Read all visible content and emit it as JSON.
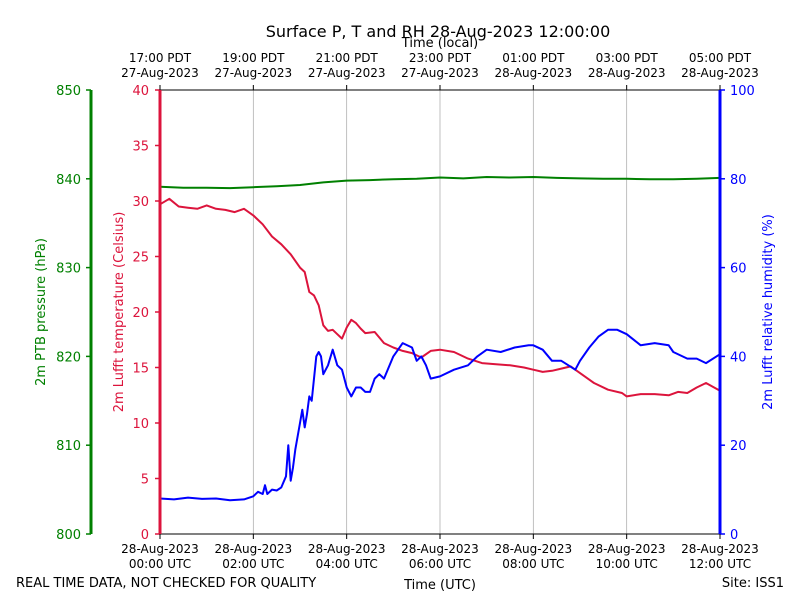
{
  "chart_data": {
    "type": "line",
    "title": "Surface P, T and RH 28-Aug-2023 12:00:00",
    "xlabel": "Time (UTC)",
    "x2label": "Time (local)",
    "footer_left": "REAL TIME DATA, NOT CHECKED FOR QUALITY",
    "footer_right": "Site: ISS1",
    "x_hours_range": [
      0,
      12
    ],
    "x_ticks_utc": [
      {
        "h": 0,
        "l1": "28-Aug-2023",
        "l2": "00:00 UTC"
      },
      {
        "h": 2,
        "l1": "28-Aug-2023",
        "l2": "02:00 UTC"
      },
      {
        "h": 4,
        "l1": "28-Aug-2023",
        "l2": "04:00 UTC"
      },
      {
        "h": 6,
        "l1": "28-Aug-2023",
        "l2": "06:00 UTC"
      },
      {
        "h": 8,
        "l1": "28-Aug-2023",
        "l2": "08:00 UTC"
      },
      {
        "h": 10,
        "l1": "28-Aug-2023",
        "l2": "10:00 UTC"
      },
      {
        "h": 12,
        "l1": "28-Aug-2023",
        "l2": "12:00 UTC"
      }
    ],
    "x_ticks_local": [
      {
        "h": 0,
        "l1": "17:00 PDT",
        "l2": "27-Aug-2023"
      },
      {
        "h": 2,
        "l1": "19:00 PDT",
        "l2": "27-Aug-2023"
      },
      {
        "h": 4,
        "l1": "21:00 PDT",
        "l2": "27-Aug-2023"
      },
      {
        "h": 6,
        "l1": "23:00 PDT",
        "l2": "27-Aug-2023"
      },
      {
        "h": 8,
        "l1": "01:00 PDT",
        "l2": "28-Aug-2023"
      },
      {
        "h": 10,
        "l1": "03:00 PDT",
        "l2": "28-Aug-2023"
      },
      {
        "h": 12,
        "l1": "05:00 PDT",
        "l2": "28-Aug-2023"
      }
    ],
    "axes": {
      "pressure": {
        "label": "2m PTB pressure (hPa)",
        "ylim": [
          800,
          850
        ],
        "ticks": [
          800,
          810,
          820,
          830,
          840,
          850
        ],
        "color": "#008000"
      },
      "temperature": {
        "label": "2m Lufft temperature (Celsius)",
        "ylim": [
          0,
          40
        ],
        "ticks": [
          0,
          5,
          10,
          15,
          20,
          25,
          30,
          35,
          40
        ],
        "color": "#dc143c"
      },
      "humidity": {
        "label": "2m Lufft relative humidity (%)",
        "ylim": [
          0,
          100
        ],
        "ticks": [
          0,
          20,
          40,
          60,
          80,
          100
        ],
        "color": "#0000ff"
      }
    },
    "series": [
      {
        "name": "2m PTB pressure",
        "axis": "pressure",
        "color": "#008000",
        "x": [
          0,
          0.5,
          1,
          1.5,
          2,
          2.5,
          3,
          3.5,
          4,
          4.5,
          5,
          5.5,
          6,
          6.5,
          7,
          7.5,
          8,
          8.5,
          9,
          9.5,
          10,
          10.5,
          11,
          11.5,
          12
        ],
        "y": [
          839.1,
          839.0,
          839.0,
          838.95,
          839.05,
          839.15,
          839.3,
          839.6,
          839.8,
          839.85,
          839.95,
          840.0,
          840.15,
          840.05,
          840.2,
          840.15,
          840.2,
          840.1,
          840.05,
          840.0,
          840.0,
          839.95,
          839.95,
          840.0,
          840.1
        ]
      },
      {
        "name": "2m Lufft temperature",
        "axis": "temperature",
        "color": "#dc143c",
        "x": [
          0,
          0.2,
          0.4,
          0.6,
          0.8,
          1.0,
          1.2,
          1.4,
          1.6,
          1.8,
          2.0,
          2.2,
          2.4,
          2.6,
          2.8,
          3.0,
          3.1,
          3.2,
          3.3,
          3.4,
          3.5,
          3.6,
          3.7,
          3.8,
          3.9,
          4.0,
          4.1,
          4.2,
          4.3,
          4.4,
          4.6,
          4.8,
          5.0,
          5.2,
          5.4,
          5.6,
          5.8,
          6.0,
          6.3,
          6.6,
          6.9,
          7.2,
          7.5,
          7.8,
          8.0,
          8.2,
          8.4,
          8.6,
          8.8,
          9.0,
          9.3,
          9.6,
          9.9,
          10.0,
          10.3,
          10.6,
          10.9,
          11.1,
          11.3,
          11.5,
          11.7,
          12.0
        ],
        "y": [
          29.7,
          30.2,
          29.5,
          29.4,
          29.3,
          29.6,
          29.3,
          29.2,
          29.0,
          29.3,
          28.7,
          27.9,
          26.8,
          26.1,
          25.2,
          24.0,
          23.6,
          21.8,
          21.5,
          20.6,
          18.8,
          18.3,
          18.4,
          18.0,
          17.6,
          18.6,
          19.3,
          19.0,
          18.5,
          18.1,
          18.2,
          17.2,
          16.8,
          16.5,
          16.3,
          15.9,
          16.5,
          16.6,
          16.4,
          15.8,
          15.4,
          15.3,
          15.2,
          15.0,
          14.8,
          14.6,
          14.7,
          14.9,
          15.1,
          14.5,
          13.6,
          13.0,
          12.7,
          12.4,
          12.6,
          12.6,
          12.5,
          12.8,
          12.7,
          13.2,
          13.6,
          12.9
        ]
      },
      {
        "name": "2m Lufft relative humidity",
        "axis": "humidity",
        "color": "#0000ff",
        "x": [
          0,
          0.3,
          0.6,
          0.9,
          1.2,
          1.5,
          1.8,
          2.0,
          2.1,
          2.2,
          2.25,
          2.3,
          2.4,
          2.5,
          2.6,
          2.7,
          2.75,
          2.8,
          2.85,
          2.9,
          3.0,
          3.05,
          3.1,
          3.15,
          3.2,
          3.25,
          3.3,
          3.35,
          3.4,
          3.45,
          3.5,
          3.6,
          3.7,
          3.8,
          3.9,
          4.0,
          4.1,
          4.2,
          4.3,
          4.4,
          4.5,
          4.6,
          4.7,
          4.8,
          5.0,
          5.2,
          5.4,
          5.5,
          5.6,
          5.7,
          5.8,
          6.0,
          6.3,
          6.6,
          6.8,
          7.0,
          7.3,
          7.6,
          7.9,
          8.0,
          8.2,
          8.4,
          8.6,
          8.9,
          9.0,
          9.2,
          9.4,
          9.6,
          9.8,
          10.0,
          10.3,
          10.6,
          10.9,
          11.0,
          11.3,
          11.5,
          11.7,
          12.0
        ],
        "y": [
          8,
          7.8,
          8.2,
          7.9,
          8.0,
          7.6,
          7.8,
          8.5,
          9.5,
          9,
          11,
          9,
          10,
          9.8,
          10.5,
          13,
          20,
          12,
          15,
          19,
          25,
          28,
          24,
          27,
          31,
          30,
          35,
          40,
          41,
          40,
          36,
          38,
          41.5,
          38,
          37,
          33,
          31,
          33,
          33,
          32,
          32,
          35,
          36,
          35,
          40,
          43,
          42,
          39,
          40,
          38,
          35,
          35.5,
          37,
          38,
          40,
          41.5,
          41,
          42,
          42.5,
          42.5,
          41.5,
          39,
          39,
          37,
          39,
          42,
          44.5,
          46,
          46,
          45,
          42.5,
          43,
          42.5,
          41,
          39.5,
          39.5,
          38.5,
          40.5
        ]
      }
    ]
  }
}
